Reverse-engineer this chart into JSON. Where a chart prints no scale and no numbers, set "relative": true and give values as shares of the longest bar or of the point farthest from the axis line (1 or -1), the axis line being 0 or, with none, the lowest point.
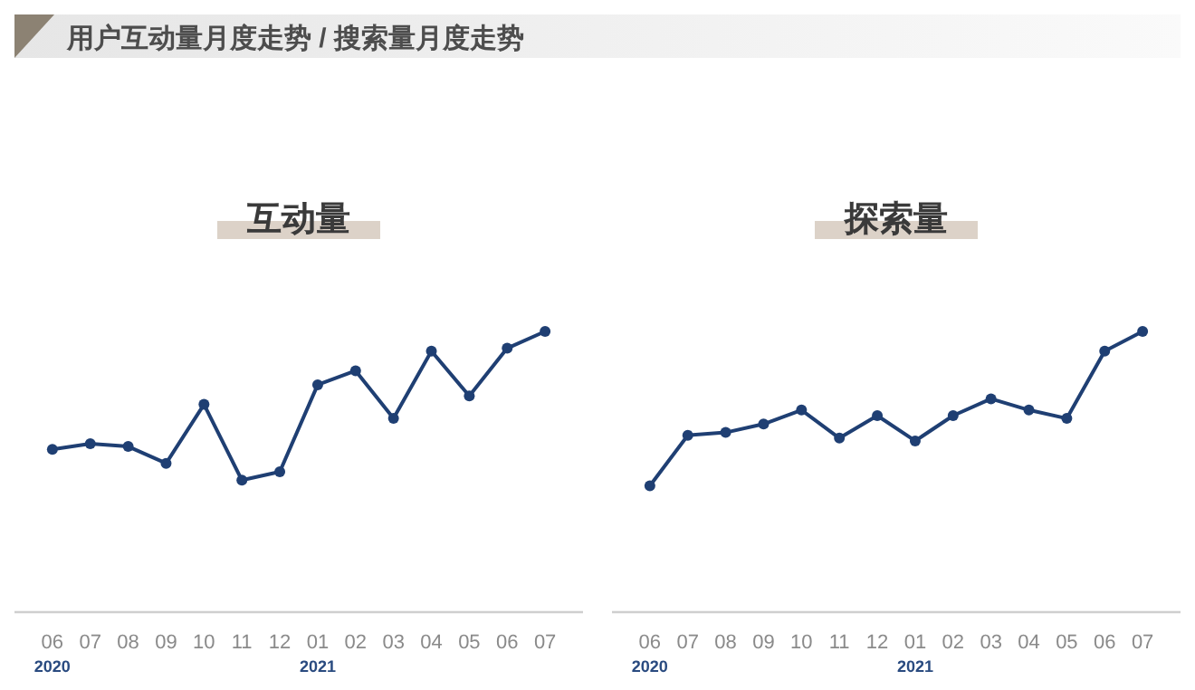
{
  "chart_data": [
    {
      "type": "line",
      "title": "互动量",
      "relative": true,
      "marker": "circle",
      "line_style": "solid",
      "annotations": [
        "用户互动量月度走势 / 搜索量月度走势"
      ],
      "xlim": [
        "2020-05",
        "2021-08"
      ],
      "x": [
        "2020-06",
        "2020-07",
        "2020-08",
        "2020-09",
        "2020-10",
        "2020-11",
        "2020-12",
        "2021-01",
        "2021-02",
        "2021-03",
        "2021-04",
        "2021-05",
        "2021-06",
        "2021-07"
      ],
      "xticks": [
        {
          "value": "2020-06",
          "label": "06\n2020"
        },
        {
          "value": "2020-07",
          "label": "07"
        },
        {
          "value": "2020-08",
          "label": "08"
        },
        {
          "value": "2020-09",
          "label": "09"
        },
        {
          "value": "2020-10",
          "label": "10"
        },
        {
          "value": "2020-11",
          "label": "11"
        },
        {
          "value": "2020-12",
          "label": "12"
        },
        {
          "value": "2021-01",
          "label": "01\n2021"
        },
        {
          "value": "2021-02",
          "label": "02"
        },
        {
          "value": "2021-03",
          "label": "03"
        },
        {
          "value": "2021-04",
          "label": "04"
        },
        {
          "value": "2021-05",
          "label": "05"
        },
        {
          "value": "2021-06",
          "label": "06"
        },
        {
          "value": "2021-07",
          "label": "07"
        }
      ],
      "series": [
        {
          "color": "#1f3f73",
          "values": [
            0.58,
            0.6,
            0.59,
            0.53,
            0.74,
            0.47,
            0.5,
            0.81,
            0.86,
            0.69,
            0.93,
            0.77,
            0.94,
            1
          ]
        }
      ]
    },
    {
      "type": "line",
      "title": "探索量",
      "relative": true,
      "marker": "circle",
      "line_style": "solid",
      "xlim": [
        "2020-05",
        "2021-08"
      ],
      "x": [
        "2020-06",
        "2020-07",
        "2020-08",
        "2020-09",
        "2020-10",
        "2020-11",
        "2020-12",
        "2021-01",
        "2021-02",
        "2021-03",
        "2021-04",
        "2021-05",
        "2021-06",
        "2021-07"
      ],
      "xticks": [
        {
          "value": "2020-06",
          "label": "06\n2020"
        },
        {
          "value": "2020-07",
          "label": "07"
        },
        {
          "value": "2020-08",
          "label": "08"
        },
        {
          "value": "2020-09",
          "label": "09"
        },
        {
          "value": "2020-10",
          "label": "10"
        },
        {
          "value": "2020-11",
          "label": "11"
        },
        {
          "value": "2020-12",
          "label": "12"
        },
        {
          "value": "2021-01",
          "label": "01\n2021"
        },
        {
          "value": "2021-02",
          "label": "02"
        },
        {
          "value": "2021-03",
          "label": "03"
        },
        {
          "value": "2021-04",
          "label": "04"
        },
        {
          "value": "2021-05",
          "label": "05"
        },
        {
          "value": "2021-06",
          "label": "06"
        },
        {
          "value": "2021-07",
          "label": "07"
        }
      ],
      "series": [
        {
          "color": "#1f3f73",
          "values": [
            0.45,
            0.63,
            0.64,
            0.67,
            0.72,
            0.62,
            0.7,
            0.61,
            0.7,
            0.76,
            0.72,
            0.69,
            0.93,
            1
          ]
        }
      ]
    }
  ]
}
